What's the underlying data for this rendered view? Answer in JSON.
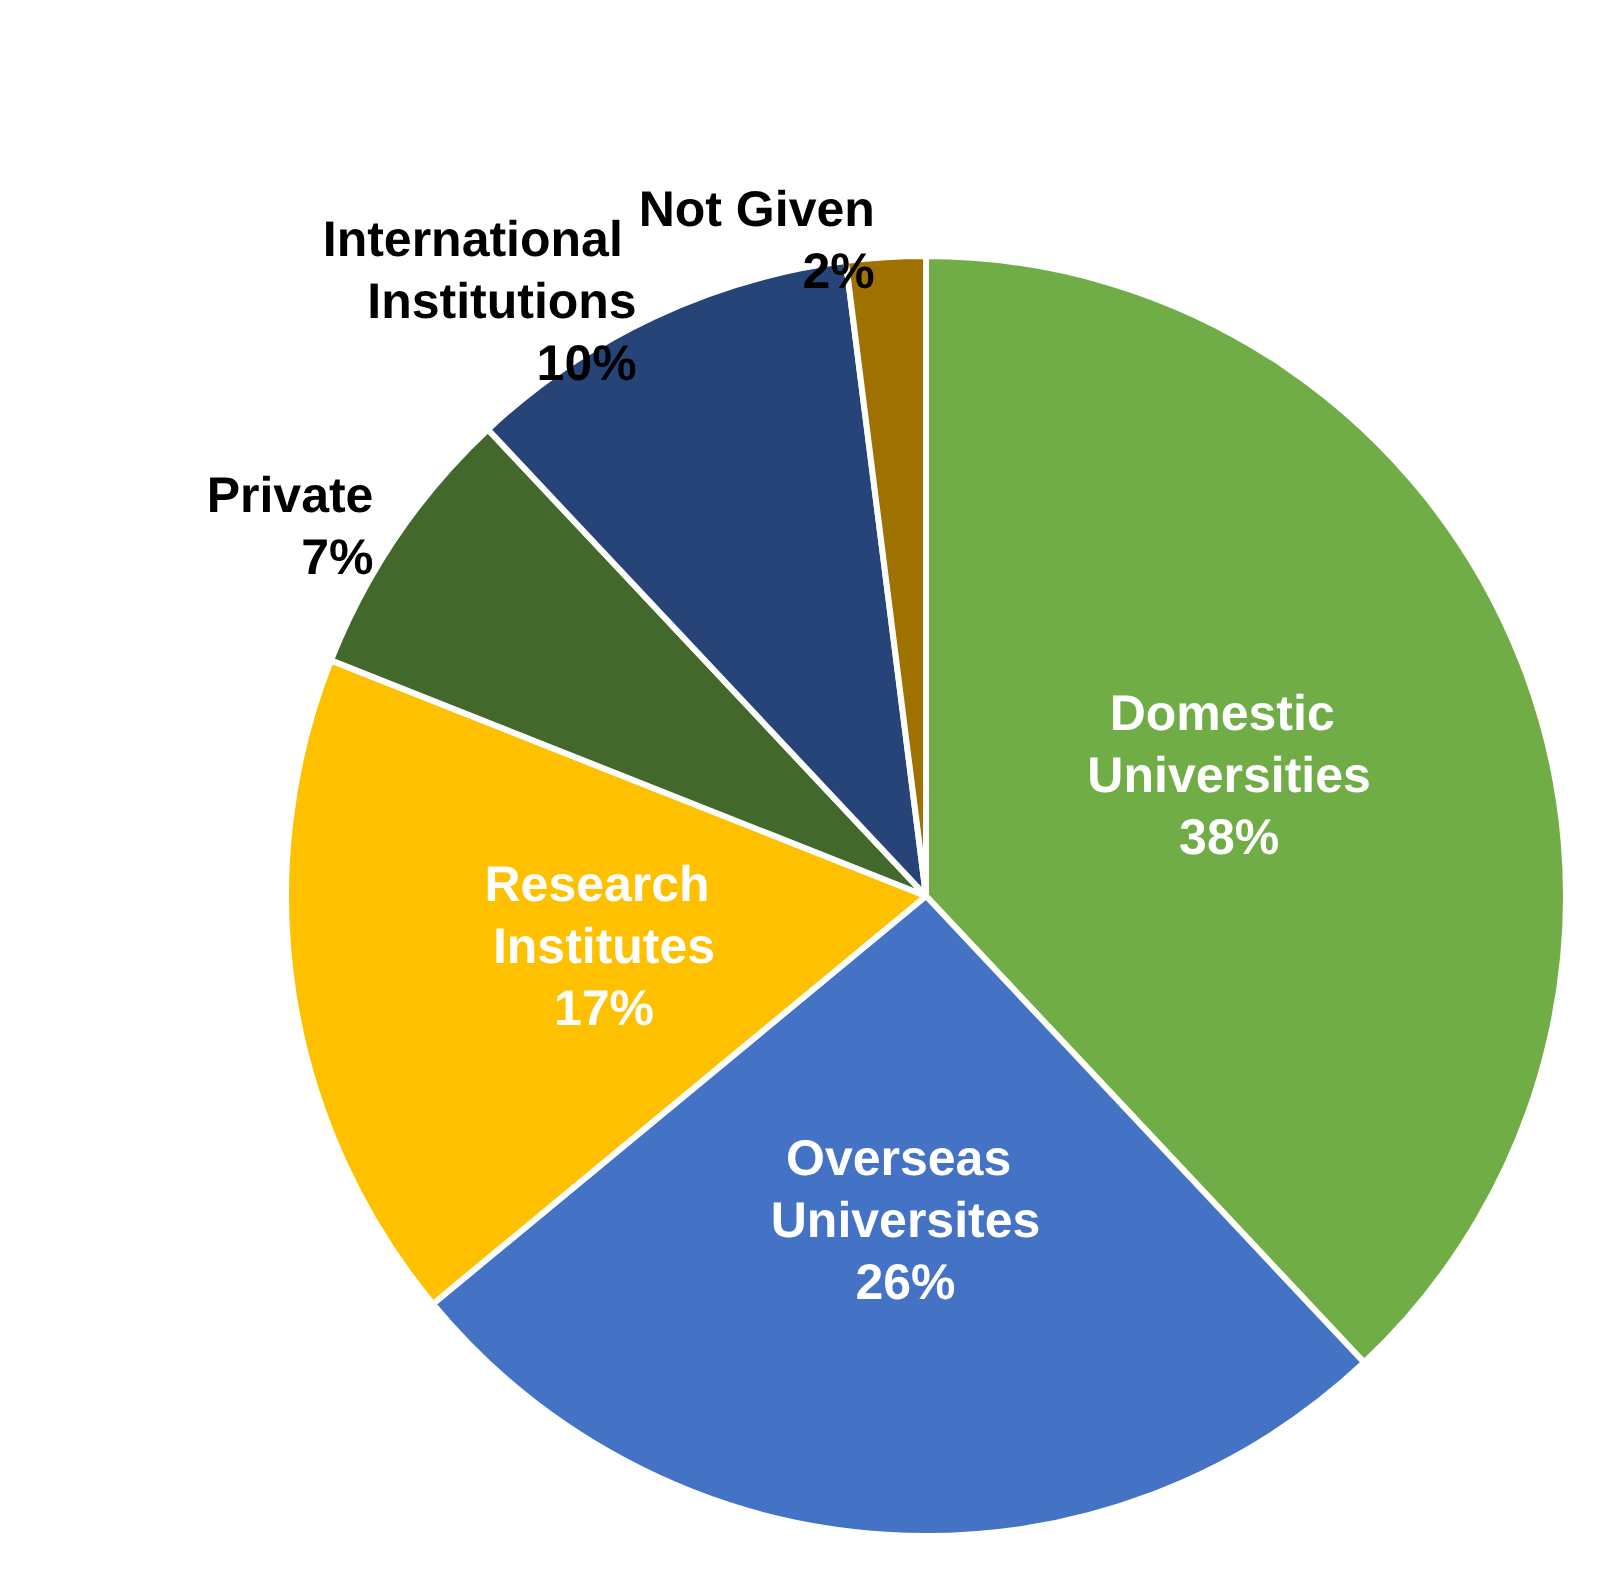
{
  "chart_data": {
    "type": "pie",
    "categories": [
      "Domestic Universities",
      "Overseas Universites",
      "Research Institutes",
      "Private",
      "International Institutions",
      "Not Given"
    ],
    "values": [
      38,
      26,
      17,
      7,
      10,
      2
    ],
    "colors": [
      "#70ad47",
      "#4472c4",
      "#ffc000",
      "#43682b",
      "#264478",
      "#9e7100"
    ],
    "value_labels": [
      "38%",
      "26%",
      "17%",
      "7%",
      "10%",
      "2%"
    ],
    "legend": false
  }
}
